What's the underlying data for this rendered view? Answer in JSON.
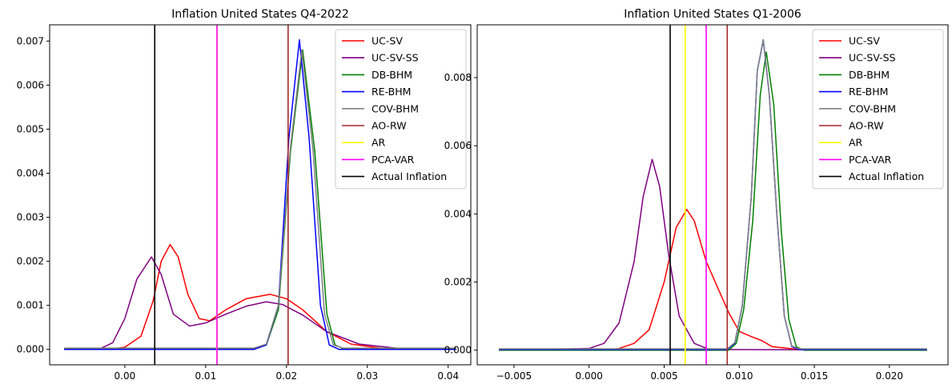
{
  "chart_data": [
    {
      "type": "line",
      "title": "Inflation United States Q4-2022",
      "xlabel": "",
      "ylabel": "",
      "xlim": [
        -0.0093,
        0.0428
      ],
      "ylim": [
        -0.00035,
        0.00737
      ],
      "xticks": [
        0.0,
        0.01,
        0.02,
        0.03,
        0.04
      ],
      "xtick_labels": [
        "0.00",
        "0.01",
        "0.02",
        "0.03",
        "0.04"
      ],
      "yticks": [
        0.0,
        0.001,
        0.002,
        0.003,
        0.004,
        0.005,
        0.006,
        0.007
      ],
      "ytick_labels": [
        "0.000",
        "0.001",
        "0.002",
        "0.003",
        "0.004",
        "0.005",
        "0.006",
        "0.007"
      ],
      "legend_position": "top-right",
      "series": [
        {
          "name": "UC-SV",
          "color": "#ff0000",
          "points": [
            [
              -0.0075,
              0
            ],
            [
              -0.002,
              0
            ],
            [
              0,
              5e-05
            ],
            [
              0.002,
              0.0003
            ],
            [
              0.0035,
              0.0011
            ],
            [
              0.0045,
              0.002
            ],
            [
              0.0056,
              0.00238
            ],
            [
              0.0066,
              0.0021
            ],
            [
              0.0078,
              0.00125
            ],
            [
              0.0092,
              0.0007
            ],
            [
              0.0105,
              0.00065
            ],
            [
              0.0125,
              0.0009
            ],
            [
              0.015,
              0.00115
            ],
            [
              0.018,
              0.00125
            ],
            [
              0.02,
              0.00115
            ],
            [
              0.022,
              0.0009
            ],
            [
              0.025,
              0.0004
            ],
            [
              0.028,
              0.00012
            ],
            [
              0.032,
              2e-05
            ],
            [
              0.041,
              0
            ]
          ]
        },
        {
          "name": "UC-SV-SS",
          "color": "#800080",
          "points": [
            [
              -0.0075,
              0
            ],
            [
              -0.003,
              2e-05
            ],
            [
              -0.0015,
              0.00015
            ],
            [
              0,
              0.0007
            ],
            [
              0.0015,
              0.0016
            ],
            [
              0.0033,
              0.0021
            ],
            [
              0.0045,
              0.0017
            ],
            [
              0.006,
              0.0008
            ],
            [
              0.008,
              0.00053
            ],
            [
              0.01,
              0.0006
            ],
            [
              0.0125,
              0.0008
            ],
            [
              0.015,
              0.00098
            ],
            [
              0.0175,
              0.00108
            ],
            [
              0.0195,
              0.00102
            ],
            [
              0.022,
              0.00078
            ],
            [
              0.025,
              0.0004
            ],
            [
              0.029,
              0.00012
            ],
            [
              0.034,
              2e-05
            ],
            [
              0.041,
              0
            ]
          ]
        },
        {
          "name": "DB-BHM",
          "color": "#008000",
          "points": [
            [
              -0.0075,
              2e-05
            ],
            [
              0.016,
              2e-05
            ],
            [
              0.0175,
              0.0001
            ],
            [
              0.019,
              0.0009
            ],
            [
              0.0205,
              0.0045
            ],
            [
              0.022,
              0.0068
            ],
            [
              0.0235,
              0.0045
            ],
            [
              0.025,
              0.0008
            ],
            [
              0.026,
              0.0001
            ],
            [
              0.027,
              2e-05
            ],
            [
              0.041,
              2e-05
            ]
          ]
        },
        {
          "name": "RE-BHM",
          "color": "#0000ff",
          "points": [
            [
              -0.0075,
              0
            ],
            [
              0.016,
              0
            ],
            [
              0.0175,
              0.0001
            ],
            [
              0.019,
              0.001
            ],
            [
              0.0203,
              0.0048
            ],
            [
              0.0216,
              0.00703
            ],
            [
              0.0228,
              0.0048
            ],
            [
              0.0242,
              0.001
            ],
            [
              0.0253,
              0.0001
            ],
            [
              0.0265,
              0
            ],
            [
              0.041,
              0
            ]
          ]
        },
        {
          "name": "COV-BHM",
          "color": "#808080",
          "points": [
            [
              -0.0075,
              3e-05
            ],
            [
              0.016,
              3e-05
            ],
            [
              0.0175,
              0.00012
            ],
            [
              0.019,
              0.001
            ],
            [
              0.0205,
              0.0046
            ],
            [
              0.0219,
              0.0068
            ],
            [
              0.0233,
              0.0045
            ],
            [
              0.0247,
              0.0008
            ],
            [
              0.0258,
              0.0001
            ],
            [
              0.027,
              3e-05
            ],
            [
              0.041,
              3e-05
            ]
          ]
        },
        {
          "name": "AO-RW",
          "color": "#a52a2a",
          "vline": 0.0202
        },
        {
          "name": "AR",
          "color": "#ffff00",
          "vline": 0.0114
        },
        {
          "name": "PCA-VAR",
          "color": "#ff00ff",
          "vline": 0.0114
        },
        {
          "name": "Actual Inflation",
          "color": "#000000",
          "vline": 0.0037
        }
      ]
    },
    {
      "type": "line",
      "title": "Inflation United States Q1-2006",
      "xlabel": "",
      "ylabel": "",
      "xlim": [
        -0.00745,
        0.0239
      ],
      "ylim": [
        -0.00043,
        0.00955
      ],
      "xticks": [
        -0.005,
        0.0,
        0.005,
        0.01,
        0.015,
        0.02
      ],
      "xtick_labels": [
        "−0.005",
        "0.000",
        "0.005",
        "0.010",
        "0.015",
        "0.020"
      ],
      "yticks": [
        0.0,
        0.002,
        0.004,
        0.006,
        0.008
      ],
      "ytick_labels": [
        "0.000",
        "0.002",
        "0.004",
        "0.006",
        "0.008"
      ],
      "legend_position": "top-right",
      "series": [
        {
          "name": "UC-SV",
          "color": "#ff0000",
          "points": [
            [
              -0.006,
              0
            ],
            [
              0.001,
              0
            ],
            [
              0.002,
              5e-05
            ],
            [
              0.003,
              0.0002
            ],
            [
              0.004,
              0.0006
            ],
            [
              0.005,
              0.002
            ],
            [
              0.0058,
              0.0036
            ],
            [
              0.0065,
              0.00413
            ],
            [
              0.007,
              0.0038
            ],
            [
              0.0078,
              0.0026
            ],
            [
              0.0085,
              0.0019
            ],
            [
              0.0093,
              0.0011
            ],
            [
              0.01,
              0.00055
            ],
            [
              0.0108,
              0.0004
            ],
            [
              0.0115,
              0.00028
            ],
            [
              0.0122,
              0.0001
            ],
            [
              0.014,
              2e-05
            ],
            [
              0.0225,
              0
            ]
          ]
        },
        {
          "name": "UC-SV-SS",
          "color": "#800080",
          "points": [
            [
              -0.006,
              0
            ],
            [
              0,
              5e-05
            ],
            [
              0.001,
              0.0002
            ],
            [
              0.002,
              0.0008
            ],
            [
              0.003,
              0.0026
            ],
            [
              0.0036,
              0.0045
            ],
            [
              0.0042,
              0.0056
            ],
            [
              0.0047,
              0.0048
            ],
            [
              0.0053,
              0.0028
            ],
            [
              0.006,
              0.001
            ],
            [
              0.007,
              0.0002
            ],
            [
              0.008,
              2e-05
            ],
            [
              0.0225,
              0
            ]
          ]
        },
        {
          "name": "DB-BHM",
          "color": "#008000",
          "points": [
            [
              -0.006,
              0
            ],
            [
              0.0093,
              0
            ],
            [
              0.0098,
              0.0002
            ],
            [
              0.0103,
              0.0012
            ],
            [
              0.0109,
              0.0038
            ],
            [
              0.0114,
              0.0075
            ],
            [
              0.0118,
              0.00875
            ],
            [
              0.0123,
              0.0072
            ],
            [
              0.0128,
              0.0035
            ],
            [
              0.0133,
              0.0009
            ],
            [
              0.0138,
              0.0001
            ],
            [
              0.0143,
              0
            ],
            [
              0.0225,
              0
            ]
          ]
        },
        {
          "name": "RE-BHM",
          "color": "#0000ff",
          "points": [
            [
              -0.006,
              2e-05
            ],
            [
              0.0092,
              2e-05
            ],
            [
              0.0097,
              0.0002
            ],
            [
              0.0102,
              0.0013
            ],
            [
              0.0108,
              0.0045
            ],
            [
              0.0112,
              0.0082
            ],
            [
              0.0116,
              0.0091
            ],
            [
              0.012,
              0.0075
            ],
            [
              0.0125,
              0.004
            ],
            [
              0.013,
              0.001
            ],
            [
              0.0135,
              0.0001
            ],
            [
              0.014,
              2e-05
            ],
            [
              0.0225,
              2e-05
            ]
          ]
        },
        {
          "name": "COV-BHM",
          "color": "#808080",
          "points": [
            [
              -0.006,
              4e-05
            ],
            [
              0.0092,
              4e-05
            ],
            [
              0.0097,
              0.00022
            ],
            [
              0.0102,
              0.0013
            ],
            [
              0.0108,
              0.0045
            ],
            [
              0.0112,
              0.0082
            ],
            [
              0.0116,
              0.00912
            ],
            [
              0.012,
              0.0075
            ],
            [
              0.0125,
              0.004
            ],
            [
              0.013,
              0.001
            ],
            [
              0.0135,
              0.00012
            ],
            [
              0.014,
              4e-05
            ],
            [
              0.0225,
              4e-05
            ]
          ]
        },
        {
          "name": "AO-RW",
          "color": "#a52a2a",
          "vline": 0.0092
        },
        {
          "name": "AR",
          "color": "#ffff00",
          "vline": 0.0064
        },
        {
          "name": "PCA-VAR",
          "color": "#ff00ff",
          "vline": 0.0078
        },
        {
          "name": "Actual Inflation",
          "color": "#000000",
          "vline": 0.0054
        }
      ]
    }
  ]
}
